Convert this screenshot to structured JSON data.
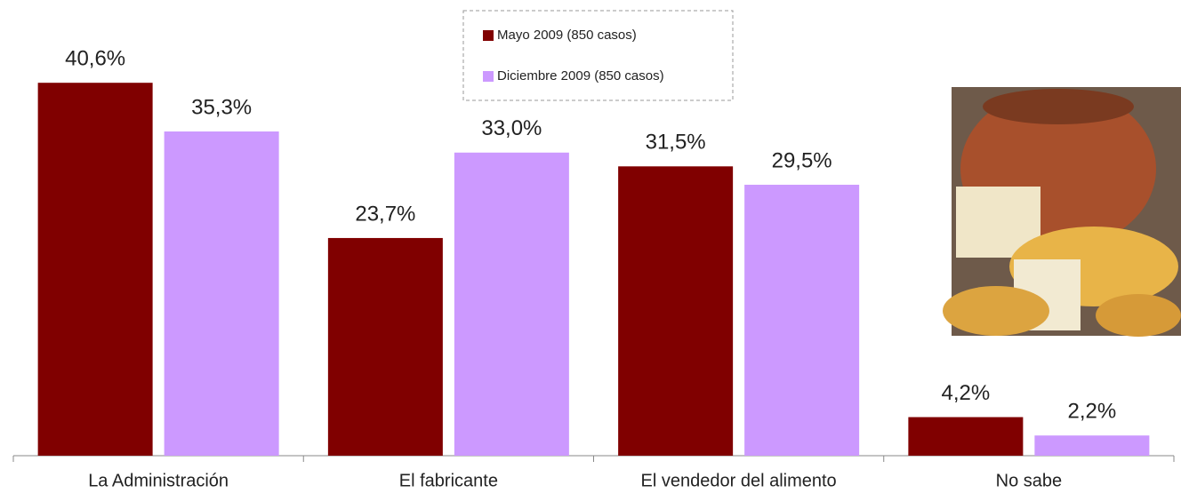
{
  "chart_data": {
    "type": "bar",
    "categories": [
      "La Administración",
      "El fabricante",
      "El vendedor del alimento",
      "No sabe"
    ],
    "series": [
      {
        "name": "Mayo 2009 (850 casos)",
        "color": "#800000",
        "values": [
          40.6,
          23.7,
          31.5,
          4.2
        ],
        "value_labels": [
          "40,6%",
          "23,7%",
          "31,5%",
          "4,2%"
        ]
      },
      {
        "name": "Diciembre 2009 (850 casos)",
        "color": "#cc99ff",
        "values": [
          35.3,
          33.0,
          29.5,
          2.2
        ],
        "value_labels": [
          "35,3%",
          "33,0%",
          "29,5%",
          "2,2%"
        ]
      }
    ]
  }
}
